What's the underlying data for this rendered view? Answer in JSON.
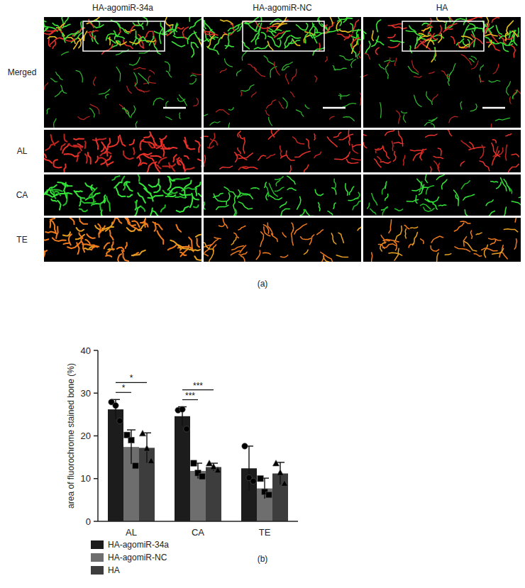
{
  "figure": {
    "panel_label": "(a)",
    "columns": [
      "HA-agomiR-34a",
      "HA-agomiR-NC",
      "HA"
    ],
    "rows": [
      "Merged",
      "AL",
      "CA",
      "TE"
    ]
  },
  "chart_data": {
    "type": "bar",
    "panel_label": "(b)",
    "y_label": "area of fluorochrome stained bone (%)",
    "categories": [
      "AL",
      "CA",
      "TE"
    ],
    "series": [
      {
        "name": "HA-agomiR-34a",
        "color": "#1c1c1c",
        "marker": "circle",
        "values": [
          26.2,
          24.6,
          12.4
        ],
        "errors": [
          2.3,
          2.2,
          5.2
        ],
        "points": [
          [
            27.9,
            27.1,
            23.5
          ],
          [
            26.0,
            26.2,
            21.6
          ],
          [
            17.6,
            10.2,
            9.4
          ]
        ]
      },
      {
        "name": "HA-agomiR-NC",
        "color": "#6e6e6e",
        "marker": "square",
        "values": [
          17.4,
          11.8,
          7.7
        ],
        "errors": [
          4.0,
          1.8,
          2.4
        ],
        "points": [
          [
            20.2,
            19.0,
            13.0
          ],
          [
            13.6,
            11.3,
            10.5
          ],
          [
            10.0,
            6.9,
            6.2
          ]
        ]
      },
      {
        "name": "HA",
        "color": "#3d3d3d",
        "marker": "triangle",
        "values": [
          17.2,
          12.7,
          11.2
        ],
        "errors": [
          3.5,
          0.9,
          2.6
        ],
        "points": [
          [
            20.5,
            17.0,
            14.1
          ],
          [
            13.5,
            12.7,
            11.9
          ],
          [
            13.5,
            11.3,
            8.8
          ]
        ]
      }
    ],
    "annotations": [
      {
        "label": "*",
        "category": 0,
        "from": 0,
        "to": 1
      },
      {
        "label": "*",
        "category": 0,
        "from": 0,
        "to": 2
      },
      {
        "label": "***",
        "category": 1,
        "from": 0,
        "to": 1
      },
      {
        "label": "***",
        "category": 1,
        "from": 0,
        "to": 2
      }
    ],
    "ylim": [
      0,
      40
    ],
    "yticks": [
      0,
      10,
      20,
      30,
      40
    ],
    "grid": false,
    "legend": "bottom"
  }
}
